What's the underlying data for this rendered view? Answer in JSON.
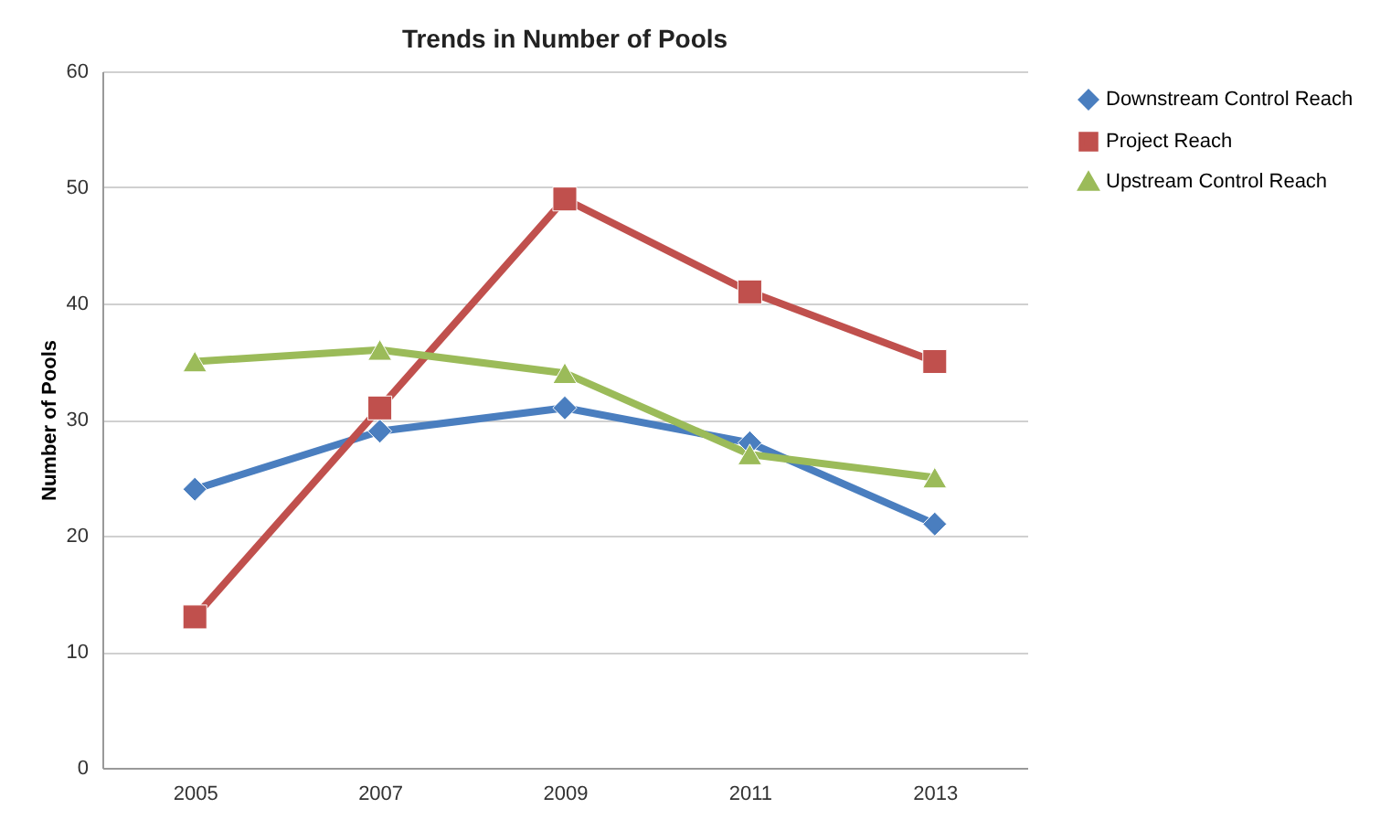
{
  "chart_data": {
    "type": "line",
    "title": "Trends in Number of Pools",
    "ylabel": "Number of Pools",
    "categories": [
      "2005",
      "2007",
      "2009",
      "2011",
      "2013"
    ],
    "series": [
      {
        "name": "Downstream Control Reach",
        "color": "#4a7ebf",
        "marker": "diamond",
        "values": [
          24,
          29,
          31,
          28,
          21
        ]
      },
      {
        "name": "Project Reach",
        "color": "#c0504d",
        "marker": "square",
        "values": [
          13,
          31,
          49,
          41,
          35
        ]
      },
      {
        "name": "Upstream Control Reach",
        "color": "#9bbb59",
        "marker": "triangle",
        "values": [
          35,
          36,
          34,
          27,
          25
        ]
      }
    ],
    "ylim": [
      0,
      60
    ],
    "yticks": [
      0,
      10,
      20,
      30,
      40,
      50,
      60
    ],
    "grid": "y",
    "legend": "right",
    "line_style": "solid"
  }
}
